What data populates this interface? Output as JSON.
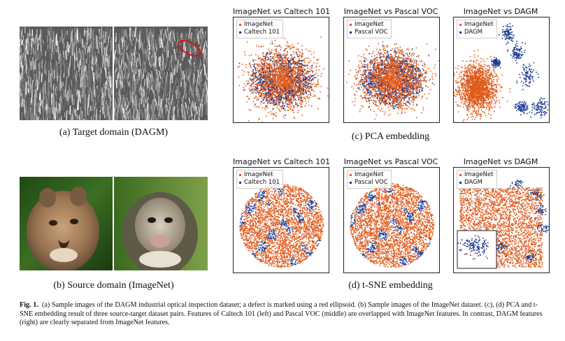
{
  "figure": {
    "panel_a_caption": "(a) Target domain (DAGM)",
    "panel_b_caption": "(b) Source domain (ImageNet)",
    "panel_c_caption": "(c) PCA embedding",
    "panel_d_caption": "(d) t-SNE embedding",
    "caption_label": "Fig. 1.",
    "caption_text": "(a) Sample images of the DAGM industrial optical inspection dataset; a defect is marked using a red ellipsoid. (b) Sample images of the ImageNet dataset. (c), (d) PCA and t-SNE embedding result of three source-target dataset pairs. Features of Caltech 101 (left) and Pascal VOC (middle) are overlapped with ImageNet features. In contrast, DAGM features (right) are clearly separated from ImageNet features."
  },
  "colors": {
    "imagenet": "#e05a1c",
    "target": "#1a3a8f"
  },
  "plots": [
    {
      "title": "ImageNet vs Caltech 101",
      "legend": [
        "ImageNet",
        "Caltech 101"
      ]
    },
    {
      "title": "ImageNet vs Pascal VOC",
      "legend": [
        "ImageNet",
        "Pascal VOC"
      ]
    },
    {
      "title": "ImageNet vs DAGM",
      "legend": [
        "ImageNet",
        "DAGM"
      ]
    },
    {
      "title": "ImageNet vs Caltech 101",
      "legend": [
        "ImageNet",
        "Caltech 101"
      ]
    },
    {
      "title": "ImageNet vs Pascal VOC",
      "legend": [
        "ImageNet",
        "Pascal VOC"
      ]
    },
    {
      "title": "ImageNet vs DAGM",
      "legend": [
        "ImageNet",
        "DAGM"
      ]
    }
  ]
}
